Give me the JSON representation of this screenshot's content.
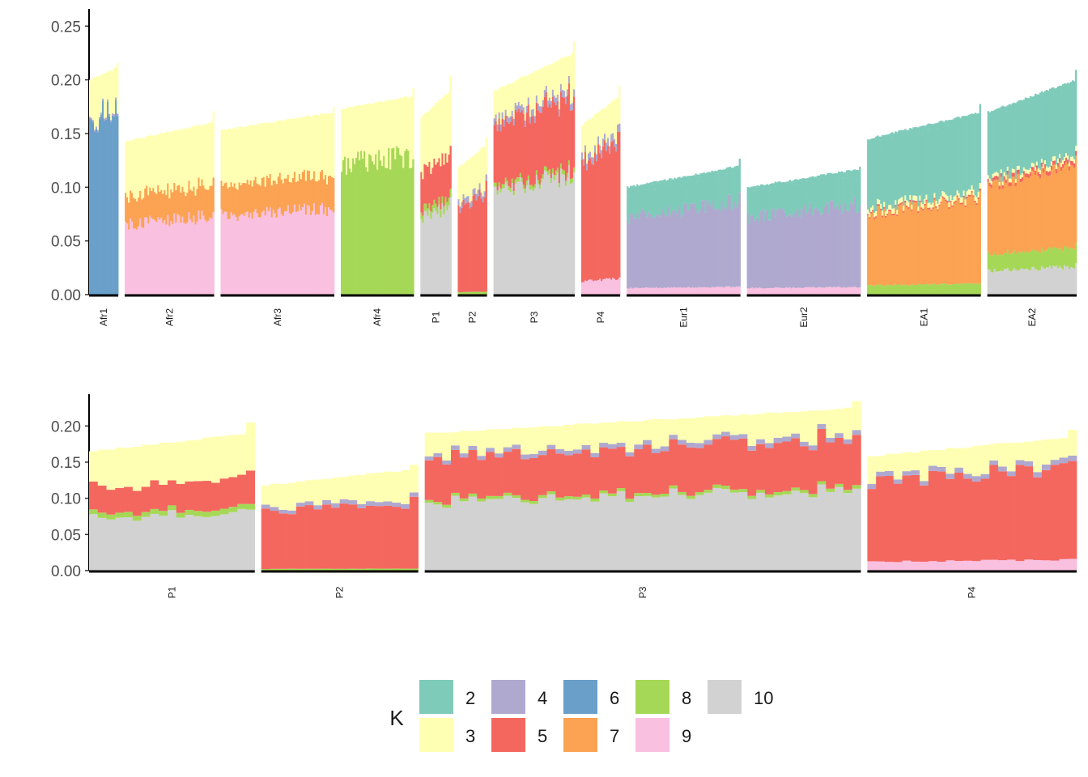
{
  "chart_data": [
    {
      "type": "stacked-bar",
      "title": "",
      "ylim": [
        0,
        0.26
      ],
      "yticks": [
        "0.00",
        "0.05",
        "0.10",
        "0.15",
        "0.20",
        "0.25"
      ],
      "populations": [
        {
          "name": "Afr1",
          "n": 18,
          "start": 0.2,
          "end": 0.212,
          "end_jump": 0.004,
          "layers": [
            {
              "k": "6",
              "frac": 0.81
            },
            {
              "k": "4",
              "frac": 0.01
            },
            {
              "k": "3",
              "frac": 0.18
            }
          ]
        },
        {
          "name": "Afr2",
          "n": 55,
          "start": 0.143,
          "end": 0.16,
          "end_jump": 0.01,
          "layers": [
            {
              "k": "9",
              "frac": 0.455
            },
            {
              "k": "7",
              "frac": 0.185
            },
            {
              "k": "3",
              "frac": 0.36
            }
          ]
        },
        {
          "name": "Afr3",
          "n": 70,
          "start": 0.153,
          "end": 0.17,
          "end_jump": 0.005,
          "layers": [
            {
              "k": "9",
              "frac": 0.475
            },
            {
              "k": "7",
              "frac": 0.185
            },
            {
              "k": "3",
              "frac": 0.34
            }
          ]
        },
        {
          "name": "Afr4",
          "n": 45,
          "start": 0.173,
          "end": 0.185,
          "end_jump": 0.007,
          "layers": [
            {
              "k": "8",
              "frac": 0.7
            },
            {
              "k": "3",
              "frac": 0.3
            }
          ]
        },
        {
          "name": "P1",
          "n": 19,
          "start": 0.165,
          "end": 0.19,
          "end_jump": 0.014,
          "layers": [
            {
              "k": "10",
              "frac": 0.435
            },
            {
              "k": "8",
              "frac": 0.04
            },
            {
              "k": "5",
              "frac": 0.215
            },
            {
              "k": "3",
              "frac": 0.31
            }
          ]
        },
        {
          "name": "P2",
          "n": 18,
          "start": 0.118,
          "end": 0.14,
          "end_jump": 0.006,
          "layers": [
            {
              "k": "8",
              "frac": 0.02
            },
            {
              "k": "5",
              "frac": 0.655
            },
            {
              "k": "4",
              "frac": 0.045
            },
            {
              "k": "3",
              "frac": 0.28
            }
          ]
        },
        {
          "name": "P3",
          "n": 50,
          "start": 0.19,
          "end": 0.225,
          "end_jump": 0.01,
          "layers": [
            {
              "k": "10",
              "frac": 0.5
            },
            {
              "k": "8",
              "frac": 0.02
            },
            {
              "k": "5",
              "frac": 0.3
            },
            {
              "k": "4",
              "frac": 0.03
            },
            {
              "k": "3",
              "frac": 0.15
            }
          ]
        },
        {
          "name": "P4",
          "n": 24,
          "start": 0.158,
          "end": 0.185,
          "end_jump": 0.009,
          "layers": [
            {
              "k": "9",
              "frac": 0.08
            },
            {
              "k": "5",
              "frac": 0.69
            },
            {
              "k": "4",
              "frac": 0.04
            },
            {
              "k": "3",
              "frac": 0.19
            }
          ]
        },
        {
          "name": "Eur1",
          "n": 70,
          "start": 0.1,
          "end": 0.12,
          "end_jump": 0.006,
          "layers": [
            {
              "k": "9",
              "frac": 0.06
            },
            {
              "k": "4",
              "frac": 0.66
            },
            {
              "k": "2",
              "frac": 0.28
            }
          ]
        },
        {
          "name": "Eur2",
          "n": 70,
          "start": 0.1,
          "end": 0.117,
          "end_jump": 0.003,
          "layers": [
            {
              "k": "9",
              "frac": 0.06
            },
            {
              "k": "4",
              "frac": 0.66
            },
            {
              "k": "2",
              "frac": 0.28
            }
          ]
        },
        {
          "name": "EA1",
          "n": 70,
          "start": 0.145,
          "end": 0.17,
          "end_jump": 0.007,
          "layers": [
            {
              "k": "8",
              "frac": 0.06
            },
            {
              "k": "7",
              "frac": 0.46
            },
            {
              "k": "5",
              "frac": 0.01
            },
            {
              "k": "3",
              "frac": 0.03
            },
            {
              "k": "2",
              "frac": 0.44
            }
          ]
        },
        {
          "name": "EA2",
          "n": 55,
          "start": 0.17,
          "end": 0.2,
          "end_jump": 0.01,
          "layers": [
            {
              "k": "10",
              "frac": 0.13
            },
            {
              "k": "8",
              "frac": 0.09
            },
            {
              "k": "7",
              "frac": 0.38
            },
            {
              "k": "5",
              "frac": 0.02
            },
            {
              "k": "3",
              "frac": 0.02
            },
            {
              "k": "2",
              "frac": 0.36
            }
          ]
        }
      ]
    },
    {
      "type": "stacked-bar",
      "title": "",
      "ylim": [
        0,
        0.235
      ],
      "yticks": [
        "0.00",
        "0.05",
        "0.10",
        "0.15",
        "0.20"
      ],
      "populations": [
        {
          "name": "P1",
          "n": 19,
          "start": 0.165,
          "end": 0.19,
          "end_jump": 0.014,
          "layers": [
            {
              "k": "10",
              "frac": 0.435
            },
            {
              "k": "8",
              "frac": 0.04
            },
            {
              "k": "5",
              "frac": 0.215
            },
            {
              "k": "3",
              "frac": 0.31
            }
          ]
        },
        {
          "name": "P2",
          "n": 18,
          "start": 0.118,
          "end": 0.14,
          "end_jump": 0.006,
          "layers": [
            {
              "k": "8",
              "frac": 0.02
            },
            {
              "k": "5",
              "frac": 0.655
            },
            {
              "k": "4",
              "frac": 0.045
            },
            {
              "k": "3",
              "frac": 0.28
            }
          ]
        },
        {
          "name": "P3",
          "n": 50,
          "start": 0.19,
          "end": 0.225,
          "end_jump": 0.01,
          "layers": [
            {
              "k": "10",
              "frac": 0.5
            },
            {
              "k": "8",
              "frac": 0.02
            },
            {
              "k": "5",
              "frac": 0.3
            },
            {
              "k": "4",
              "frac": 0.03
            },
            {
              "k": "3",
              "frac": 0.15
            }
          ]
        },
        {
          "name": "P4",
          "n": 24,
          "start": 0.158,
          "end": 0.185,
          "end_jump": 0.009,
          "layers": [
            {
              "k": "9",
              "frac": 0.08
            },
            {
              "k": "5",
              "frac": 0.69
            },
            {
              "k": "4",
              "frac": 0.04
            },
            {
              "k": "3",
              "frac": 0.19
            }
          ]
        }
      ]
    }
  ],
  "legend": {
    "title": "K",
    "entries": [
      {
        "k": "2",
        "color": "#7fcbba"
      },
      {
        "k": "3",
        "color": "#ffffb3"
      },
      {
        "k": "4",
        "color": "#b0a9cf"
      },
      {
        "k": "5",
        "color": "#f4675f"
      },
      {
        "k": "6",
        "color": "#6a9fc9"
      },
      {
        "k": "7",
        "color": "#fba353"
      },
      {
        "k": "8",
        "color": "#a6d857"
      },
      {
        "k": "9",
        "color": "#f9c0e0"
      },
      {
        "k": "10",
        "color": "#d2d2d2"
      }
    ]
  }
}
